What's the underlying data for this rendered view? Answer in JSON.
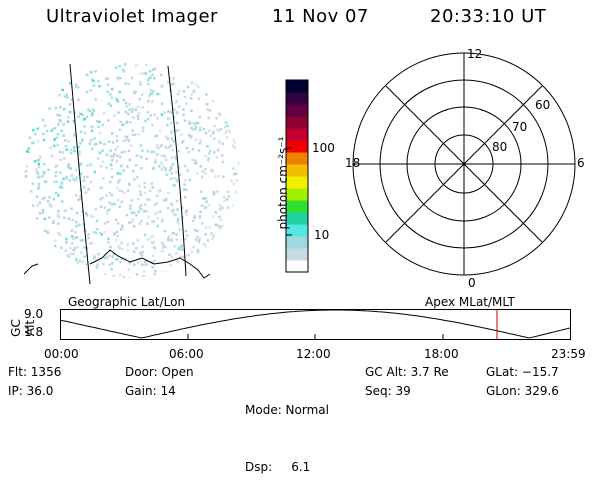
{
  "header": {
    "instrument": "Ultraviolet Imager",
    "date": "11 Nov 07",
    "time": "20:33:10 UT"
  },
  "colorbar": {
    "unit_label": "photon cm⁻²s⁻¹",
    "ticks": [
      "100",
      "10"
    ],
    "colors": [
      "#ffffff",
      "#c8dce0",
      "#a0d8e0",
      "#50e8e0",
      "#20d0a0",
      "#30e030",
      "#a0f000",
      "#f0f000",
      "#f0c000",
      "#f08000",
      "#f00000",
      "#c00030",
      "#900030",
      "#600040",
      "#300040",
      "#000030"
    ]
  },
  "polar": {
    "mlt_labels": {
      "top": "12",
      "left": "18",
      "right": "6",
      "bottom": "0"
    },
    "lat_labels": [
      "60",
      "70",
      "80"
    ]
  },
  "timeline": {
    "ylabel": "GC Alt",
    "yticks": [
      "9.0",
      "1.8"
    ],
    "left_title": "Geographic Lat/Lon",
    "right_title": "Apex MLat/MLT",
    "xticks": [
      "00:00",
      "06:00",
      "12:00",
      "18:00",
      "23:59"
    ],
    "marker_color": "#d00000"
  },
  "info": {
    "flt": "Flt: 1356",
    "ip": "IP: 36.0",
    "door": "Door: Open",
    "gain": "Gain: 14",
    "mode": "Mode: Normal",
    "dsp": "Dsp:     6.1",
    "gcalt": "GC Alt: 3.7 Re",
    "seq": "Seq: 39",
    "glat": "GLat: −15.7",
    "glon": "GLon: 329.6"
  }
}
